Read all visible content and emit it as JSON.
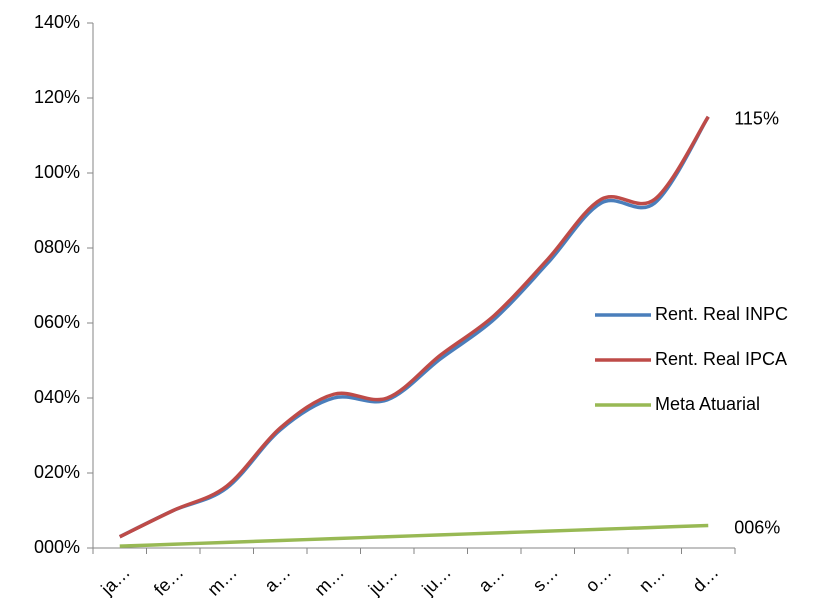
{
  "chart_data": {
    "type": "line",
    "categories": [
      "ja…",
      "fe…",
      "m…",
      "a…",
      "m…",
      "ju…",
      "ju…",
      "a…",
      "s…",
      "o…",
      "n…",
      "d…"
    ],
    "series": [
      {
        "name": "Rent. Real INPC",
        "color": "#4a7ebb",
        "values": [
          3,
          10,
          16,
          31.5,
          40,
          39.5,
          50.5,
          61,
          76,
          92,
          92,
          115
        ]
      },
      {
        "name": "Rent. Real IPCA",
        "color": "#be4b48",
        "values": [
          3,
          10,
          16.5,
          32,
          41,
          40,
          51.5,
          62,
          77,
          93,
          93,
          115
        ],
        "value_labels": [
          null,
          null,
          null,
          null,
          null,
          null,
          null,
          null,
          null,
          null,
          null,
          "115%"
        ]
      },
      {
        "name": "Meta Atuarial",
        "color": "#98b954",
        "values": [
          0.5,
          1,
          1.5,
          2,
          2.5,
          3,
          3.5,
          4,
          4.5,
          5,
          5.5,
          6
        ],
        "value_labels": [
          null,
          null,
          null,
          null,
          null,
          null,
          null,
          null,
          null,
          null,
          null,
          "006%"
        ]
      }
    ],
    "ylim": [
      0,
      140
    ],
    "yticks": [
      {
        "value": 0,
        "label": "000%"
      },
      {
        "value": 20,
        "label": "020%"
      },
      {
        "value": 40,
        "label": "040%"
      },
      {
        "value": 60,
        "label": "060%"
      },
      {
        "value": 80,
        "label": "080%"
      },
      {
        "value": 100,
        "label": "100%"
      },
      {
        "value": 120,
        "label": "120%"
      },
      {
        "value": 140,
        "label": "140%"
      }
    ],
    "grid": false,
    "legend": "right"
  }
}
